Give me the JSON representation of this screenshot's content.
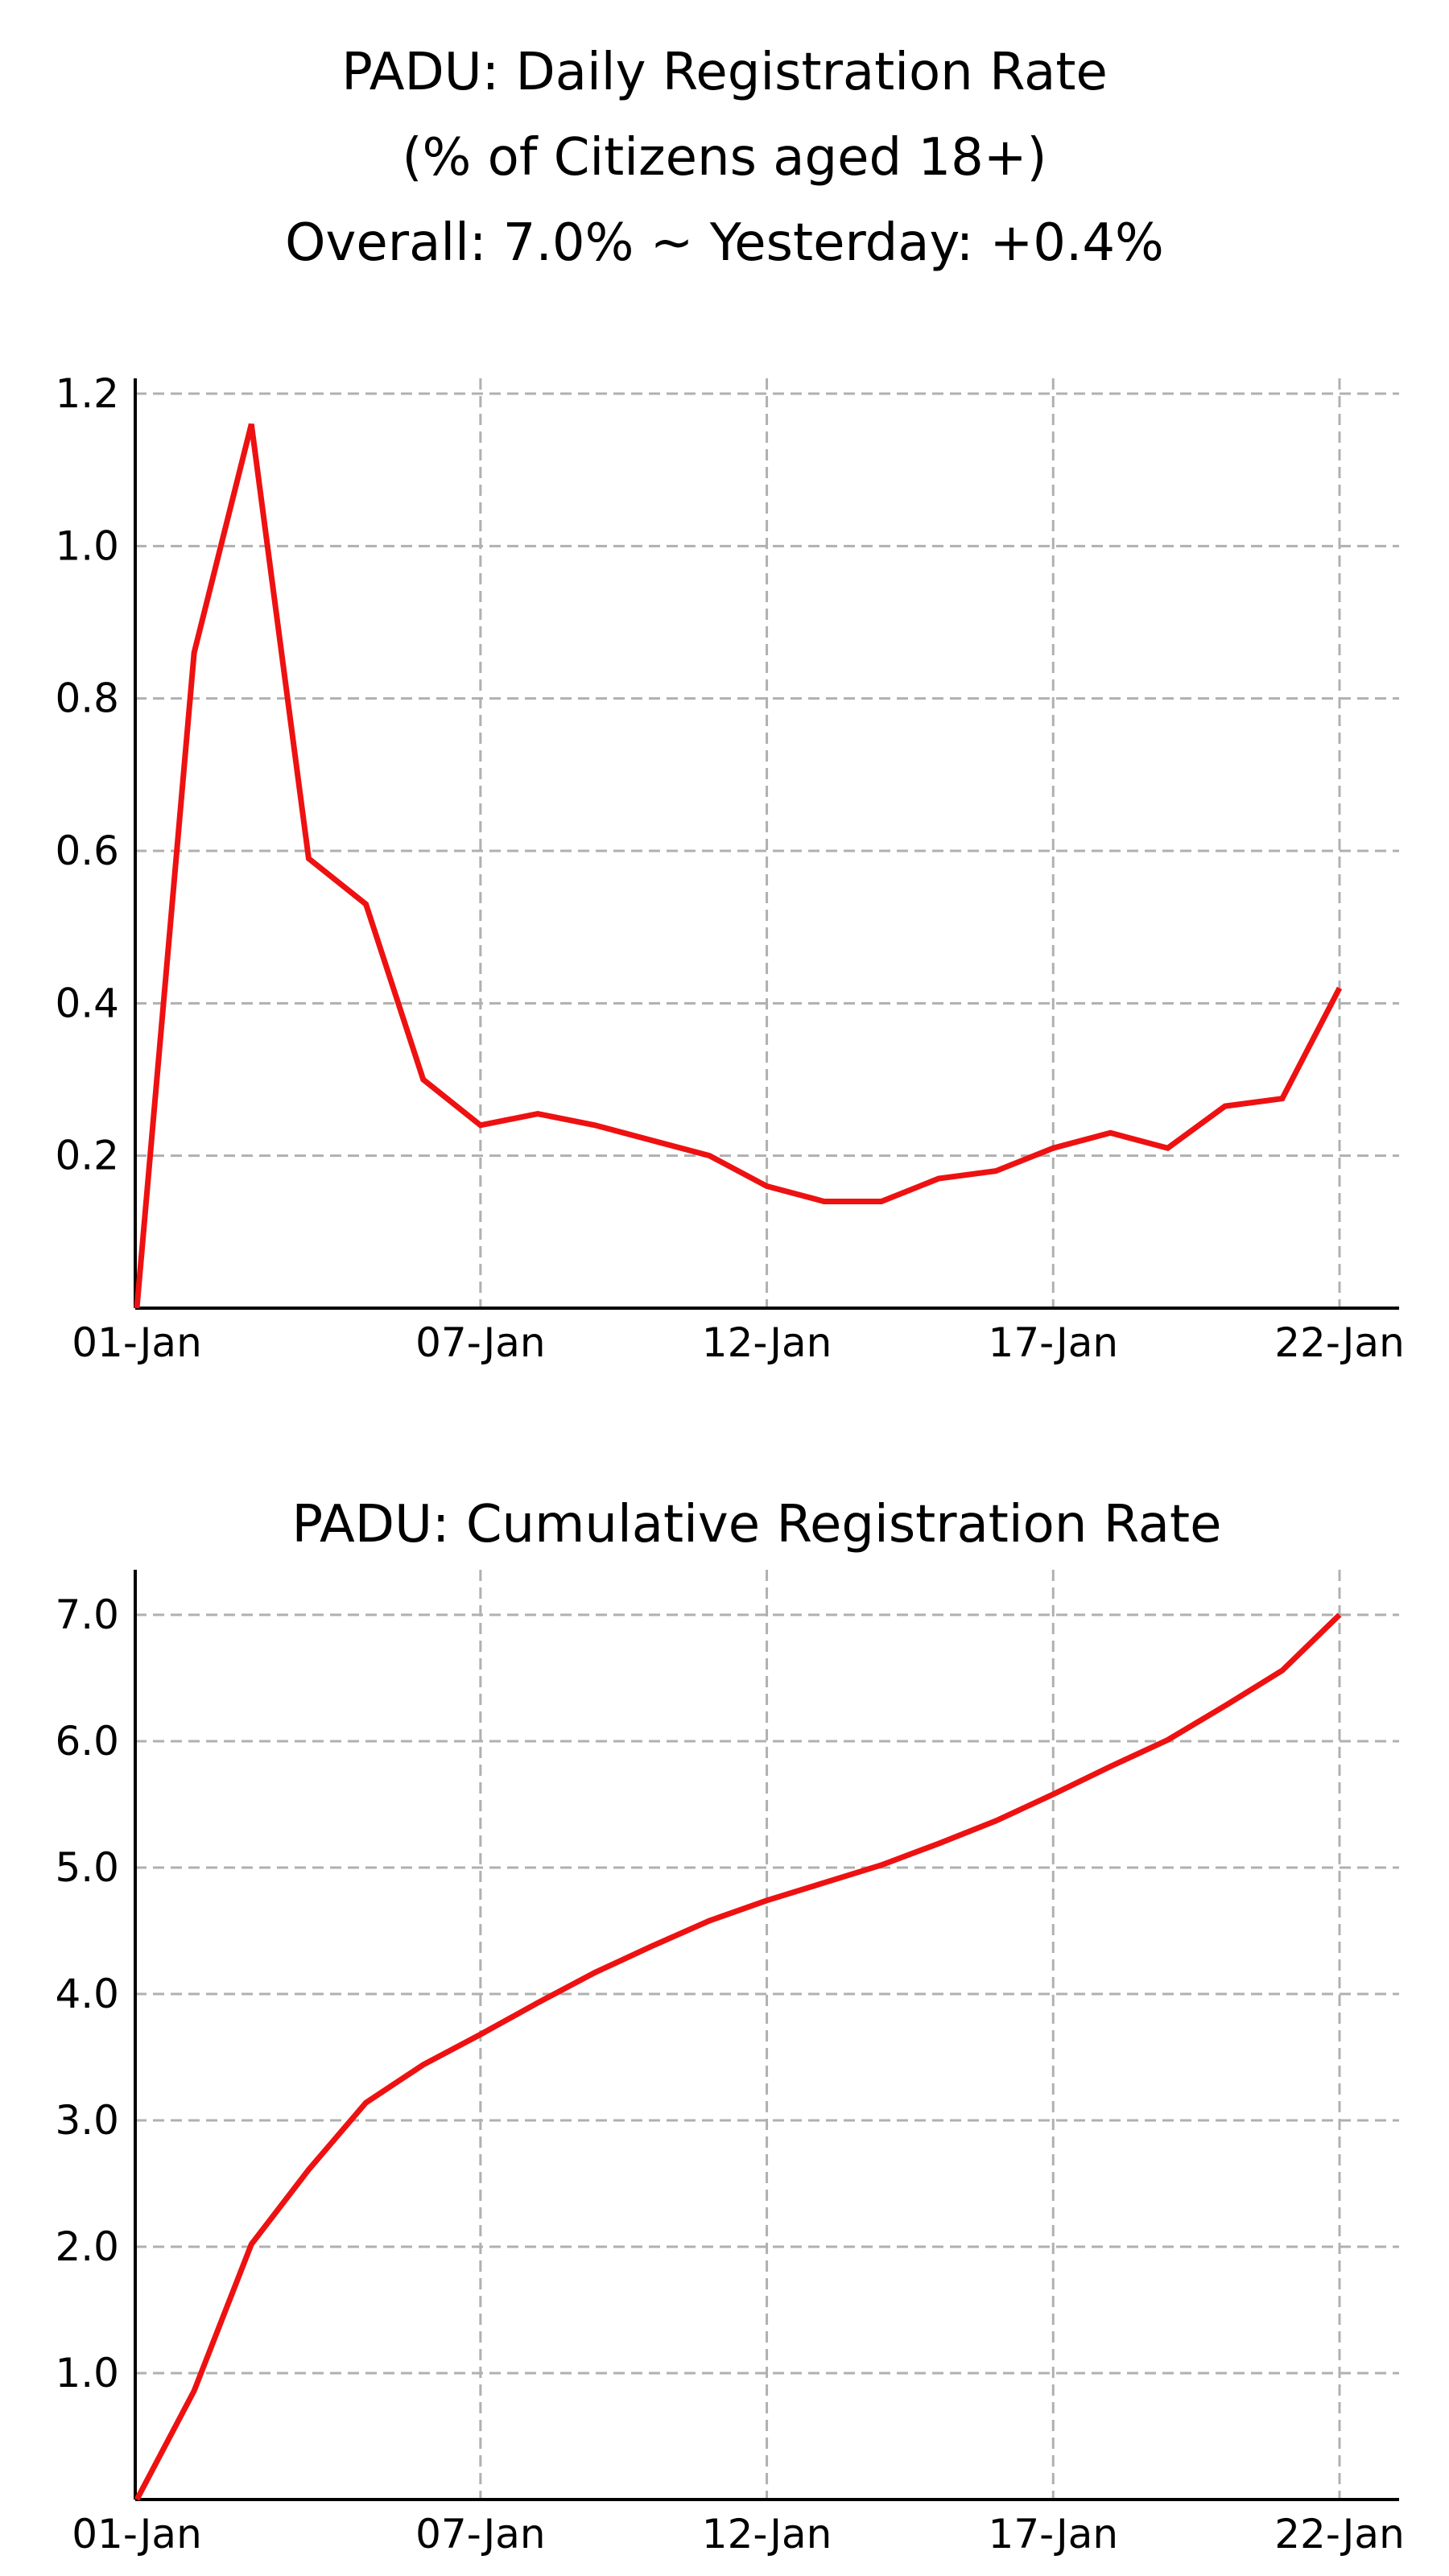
{
  "header": {
    "title_line1": "PADU: Daily Registration Rate",
    "title_line2": "(% of Citizens aged 18+)",
    "title_line3": "Overall: 7.0% ~ Yesterday: +0.4%"
  },
  "colors": {
    "line": "#ee1111",
    "grid": "#b0b0b0",
    "axis": "#000000",
    "background": "#ffffff"
  },
  "chart_data": [
    {
      "type": "line",
      "title": "PADU: Daily Registration Rate (% of Citizens aged 18+) — Overall: 7.0% ~ Yesterday: +0.4%",
      "xlabel": "",
      "ylabel": "",
      "x": [
        "01-Jan",
        "02-Jan",
        "03-Jan",
        "04-Jan",
        "05-Jan",
        "06-Jan",
        "07-Jan",
        "08-Jan",
        "09-Jan",
        "10-Jan",
        "11-Jan",
        "12-Jan",
        "13-Jan",
        "14-Jan",
        "15-Jan",
        "16-Jan",
        "17-Jan",
        "18-Jan",
        "19-Jan",
        "20-Jan",
        "21-Jan",
        "22-Jan"
      ],
      "series": [
        {
          "name": "Daily Registration Rate (%)",
          "values": [
            0.0,
            0.86,
            1.16,
            0.59,
            0.53,
            0.3,
            0.24,
            0.255,
            0.24,
            0.22,
            0.2,
            0.16,
            0.14,
            0.14,
            0.17,
            0.18,
            0.21,
            0.23,
            0.21,
            0.265,
            0.275,
            0.42
          ]
        }
      ],
      "xticks": [
        "01-Jan",
        "07-Jan",
        "12-Jan",
        "17-Jan",
        "22-Jan"
      ],
      "xtick_index": [
        0,
        6,
        11,
        16,
        21
      ],
      "yticks": [
        "0.2",
        "0.4",
        "0.6",
        "0.8",
        "1.0",
        "1.2"
      ],
      "ytick_values": [
        0.2,
        0.4,
        0.6,
        0.8,
        1.0,
        1.2
      ],
      "ylim": [
        0,
        1.21
      ],
      "grid": true,
      "legend": null
    },
    {
      "type": "line",
      "title": "PADU: Cumulative Registration Rate",
      "xlabel": "",
      "ylabel": "",
      "x": [
        "01-Jan",
        "02-Jan",
        "03-Jan",
        "04-Jan",
        "05-Jan",
        "06-Jan",
        "07-Jan",
        "08-Jan",
        "09-Jan",
        "10-Jan",
        "11-Jan",
        "12-Jan",
        "13-Jan",
        "14-Jan",
        "15-Jan",
        "16-Jan",
        "17-Jan",
        "18-Jan",
        "19-Jan",
        "20-Jan",
        "21-Jan",
        "22-Jan"
      ],
      "series": [
        {
          "name": "Cumulative Registration Rate (%)",
          "values": [
            0.0,
            0.86,
            2.02,
            2.61,
            3.14,
            3.44,
            3.68,
            3.93,
            4.17,
            4.38,
            4.58,
            4.74,
            4.88,
            5.02,
            5.19,
            5.37,
            5.58,
            5.8,
            6.01,
            6.28,
            6.56,
            7.0
          ]
        }
      ],
      "xticks": [
        "01-Jan",
        "07-Jan",
        "12-Jan",
        "17-Jan",
        "22-Jan"
      ],
      "xtick_index": [
        0,
        6,
        11,
        16,
        21
      ],
      "yticks": [
        "1.0",
        "2.0",
        "3.0",
        "4.0",
        "5.0",
        "6.0",
        "7.0"
      ],
      "ytick_values": [
        1,
        2,
        3,
        4,
        5,
        6,
        7
      ],
      "ylim": [
        0,
        7.35
      ],
      "grid": true,
      "legend": null
    }
  ]
}
